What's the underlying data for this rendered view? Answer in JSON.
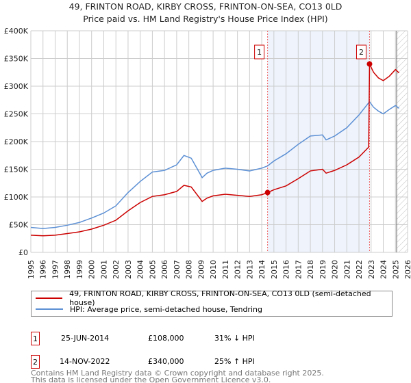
{
  "chart_data": {
    "type": "line",
    "title": "49, FRINTON ROAD, KIRBY CROSS, FRINTON-ON-SEA, CO13 0LD",
    "subtitle": "Price paid vs. HM Land Registry's House Price Index (HPI)",
    "xlim": [
      1995,
      2026
    ],
    "ylim": [
      0,
      400000
    ],
    "y_ticks": [
      {
        "v": 0,
        "label": "£0"
      },
      {
        "v": 50000,
        "label": "£50K"
      },
      {
        "v": 100000,
        "label": "£100K"
      },
      {
        "v": 150000,
        "label": "£150K"
      },
      {
        "v": 200000,
        "label": "£200K"
      },
      {
        "v": 250000,
        "label": "£250K"
      },
      {
        "v": 300000,
        "label": "£300K"
      },
      {
        "v": 350000,
        "label": "£350K"
      },
      {
        "v": 400000,
        "label": "£400K"
      }
    ],
    "x_ticks": [
      "1995",
      "1996",
      "1997",
      "1998",
      "1999",
      "2000",
      "2001",
      "2002",
      "2003",
      "2004",
      "2005",
      "2006",
      "2007",
      "2008",
      "2009",
      "2010",
      "2011",
      "2012",
      "2013",
      "2014",
      "2015",
      "2016",
      "2017",
      "2018",
      "2019",
      "2020",
      "2021",
      "2022",
      "2023",
      "2024",
      "2025",
      "2026"
    ],
    "grid": true,
    "series": [
      {
        "name": "49, FRINTON ROAD, KIRBY CROSS, FRINTON-ON-SEA, CO13 0LD (semi-detached house)",
        "color": "#cc0000",
        "x": [
          1995,
          1996,
          1997,
          1998,
          1999,
          2000,
          2001,
          2002,
          2003,
          2004,
          2005,
          2006,
          2007,
          2007.6,
          2008.2,
          2009.1,
          2009.5,
          2010,
          2011,
          2012,
          2013,
          2014,
          2014.48,
          2015,
          2016,
          2017,
          2018,
          2019,
          2019.3,
          2020,
          2021,
          2022,
          2022.8,
          2022.87,
          2023.2,
          2023.6,
          2024,
          2024.5,
          2025,
          2025.3
        ],
        "y": [
          31000,
          30000,
          31000,
          34000,
          37000,
          42000,
          49000,
          58000,
          75000,
          90000,
          101000,
          104000,
          110000,
          121000,
          118000,
          92000,
          98000,
          102000,
          105000,
          103000,
          101000,
          104000,
          108000,
          113000,
          120000,
          133000,
          147000,
          150000,
          143000,
          148000,
          158000,
          172000,
          190000,
          340000,
          325000,
          315000,
          310000,
          318000,
          330000,
          324000
        ]
      },
      {
        "name": "HPI: Average price, semi-detached house, Tendring",
        "color": "#5b8fd4",
        "x": [
          1995,
          1996,
          1997,
          1998,
          1999,
          2000,
          2001,
          2002,
          2003,
          2004,
          2005,
          2006,
          2007,
          2007.6,
          2008.2,
          2009.1,
          2009.5,
          2010,
          2011,
          2012,
          2013,
          2014,
          2014.48,
          2015,
          2016,
          2017,
          2018,
          2019,
          2019.3,
          2020,
          2021,
          2022,
          2022.87,
          2023.2,
          2023.6,
          2024,
          2024.5,
          2025,
          2025.3
        ],
        "y": [
          45000,
          43000,
          45000,
          49000,
          54000,
          62000,
          71000,
          84000,
          108000,
          128000,
          145000,
          148000,
          158000,
          175000,
          170000,
          135000,
          143000,
          148000,
          152000,
          150000,
          147000,
          152000,
          156000,
          165000,
          178000,
          195000,
          210000,
          212000,
          203000,
          210000,
          225000,
          248000,
          272000,
          262000,
          255000,
          250000,
          258000,
          265000,
          260000
        ]
      }
    ],
    "markers": [
      {
        "label": "1",
        "x": 2014.48,
        "y": 108000
      },
      {
        "label": "2",
        "x": 2022.87,
        "y": 340000
      }
    ],
    "shaded_range": [
      2014.48,
      2022.87
    ],
    "forecast_hatch_from": 2025.1
  },
  "legend": [
    "49, FRINTON ROAD, KIRBY CROSS, FRINTON-ON-SEA, CO13 0LD (semi-detached house)",
    "HPI: Average price, semi-detached house, Tendring"
  ],
  "transactions": [
    {
      "num": "1",
      "date": "25-JUN-2014",
      "price": "£108,000",
      "hpi": "31% ↓ HPI"
    },
    {
      "num": "2",
      "date": "14-NOV-2022",
      "price": "£340,000",
      "hpi": "25% ↑ HPI"
    }
  ],
  "footer": [
    "Contains HM Land Registry data © Crown copyright and database right 2025.",
    "This data is licensed under the Open Government Licence v3.0."
  ]
}
